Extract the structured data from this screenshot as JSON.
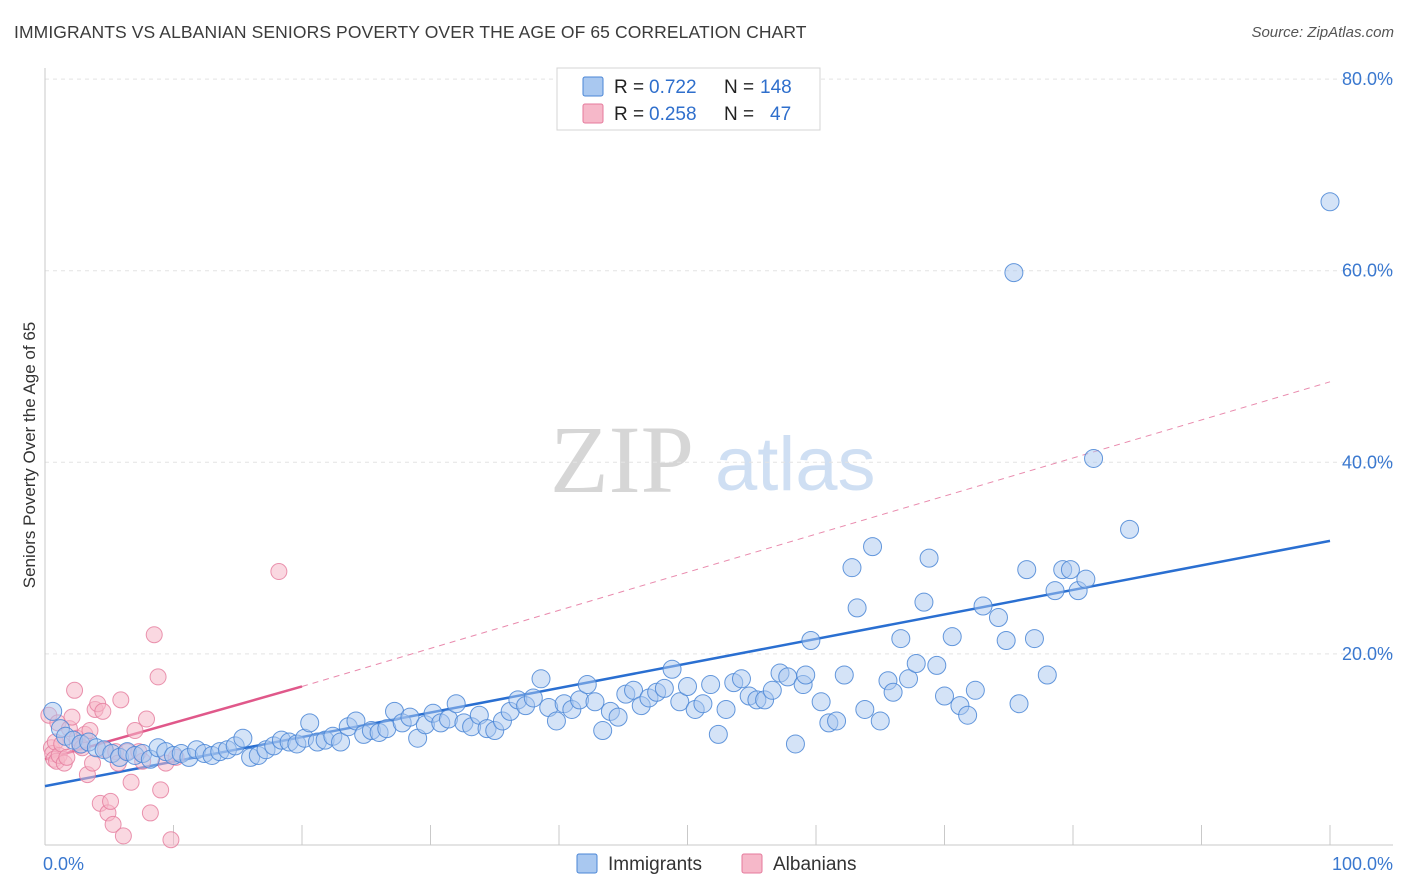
{
  "title": "IMMIGRANTS VS ALBANIAN SENIORS POVERTY OVER THE AGE OF 65 CORRELATION CHART",
  "source": "Source: ZipAtlas.com",
  "watermark": {
    "zip": "ZIP",
    "atlas": "atlas"
  },
  "colors": {
    "immigrants_fill": "#a9c8f0",
    "immigrants_stroke": "#4a86d6",
    "immigrants_line": "#2a6fd1",
    "albanians_fill": "#f6b8c9",
    "albanians_stroke": "#e57a9c",
    "albanians_line": "#e0588a",
    "grid": "#e3e3e3",
    "tick_label": "#3a78cf"
  },
  "legend": {
    "rows": [
      {
        "r_label": "R = ",
        "r_value": "0.722",
        "n_label": "N = ",
        "n_value": "148"
      },
      {
        "r_label": "R = ",
        "r_value": "0.258",
        "n_label": "N = ",
        "n_value": "47"
      }
    ]
  },
  "chart_data": {
    "type": "scatter",
    "title": "IMMIGRANTS VS ALBANIAN SENIORS POVERTY OVER THE AGE OF 65 CORRELATION CHART",
    "xlabel": "",
    "ylabel": "Seniors Poverty Over the Age of 65",
    "xlim": [
      0,
      100
    ],
    "ylim": [
      0,
      80
    ],
    "x_tick_labels": [
      "0.0%",
      "100.0%"
    ],
    "y_ticks": [
      20,
      40,
      60,
      80
    ],
    "y_tick_labels": [
      "20.0%",
      "40.0%",
      "60.0%",
      "80.0%"
    ],
    "grid": true,
    "legend_placement": "top-center",
    "series": [
      {
        "name": "Immigrants",
        "R": 0.722,
        "N": 148,
        "trend": {
          "x": [
            0,
            100
          ],
          "y": [
            6.2,
            31.8
          ]
        },
        "points": [
          [
            0.6,
            14.0
          ],
          [
            1.2,
            12.2
          ],
          [
            1.6,
            11.4
          ],
          [
            2.2,
            11.0
          ],
          [
            2.8,
            10.6
          ],
          [
            3.4,
            10.8
          ],
          [
            4.0,
            10.2
          ],
          [
            4.6,
            10.0
          ],
          [
            5.2,
            9.6
          ],
          [
            5.8,
            9.2
          ],
          [
            6.4,
            9.8
          ],
          [
            7.0,
            9.4
          ],
          [
            7.6,
            9.6
          ],
          [
            8.2,
            9.0
          ],
          [
            8.8,
            10.2
          ],
          [
            9.4,
            9.8
          ],
          [
            10.0,
            9.4
          ],
          [
            10.6,
            9.6
          ],
          [
            11.2,
            9.2
          ],
          [
            11.8,
            10.0
          ],
          [
            12.4,
            9.6
          ],
          [
            13.0,
            9.4
          ],
          [
            13.6,
            9.8
          ],
          [
            14.2,
            10.0
          ],
          [
            14.8,
            10.4
          ],
          [
            15.4,
            11.2
          ],
          [
            16.0,
            9.2
          ],
          [
            16.6,
            9.4
          ],
          [
            17.2,
            10.0
          ],
          [
            17.8,
            10.4
          ],
          [
            18.4,
            11.0
          ],
          [
            19.0,
            10.8
          ],
          [
            19.6,
            10.6
          ],
          [
            20.2,
            11.2
          ],
          [
            20.6,
            12.8
          ],
          [
            21.2,
            10.8
          ],
          [
            21.8,
            11.0
          ],
          [
            22.4,
            11.4
          ],
          [
            23.0,
            10.8
          ],
          [
            23.6,
            12.4
          ],
          [
            24.2,
            13.0
          ],
          [
            24.8,
            11.6
          ],
          [
            25.4,
            12.0
          ],
          [
            26.0,
            11.8
          ],
          [
            26.6,
            12.2
          ],
          [
            27.2,
            14.0
          ],
          [
            27.8,
            12.8
          ],
          [
            28.4,
            13.4
          ],
          [
            29.0,
            11.2
          ],
          [
            29.6,
            12.6
          ],
          [
            30.2,
            13.8
          ],
          [
            30.8,
            12.8
          ],
          [
            31.4,
            13.2
          ],
          [
            32.0,
            14.8
          ],
          [
            32.6,
            12.8
          ],
          [
            33.2,
            12.4
          ],
          [
            33.8,
            13.6
          ],
          [
            34.4,
            12.2
          ],
          [
            35.0,
            12.0
          ],
          [
            35.6,
            13.0
          ],
          [
            36.2,
            14.0
          ],
          [
            36.8,
            15.2
          ],
          [
            37.4,
            14.6
          ],
          [
            38.0,
            15.4
          ],
          [
            38.6,
            17.4
          ],
          [
            39.2,
            14.4
          ],
          [
            39.8,
            13.0
          ],
          [
            40.4,
            14.8
          ],
          [
            41.0,
            14.2
          ],
          [
            41.6,
            15.2
          ],
          [
            42.2,
            16.8
          ],
          [
            42.8,
            15.0
          ],
          [
            43.4,
            12.0
          ],
          [
            44.0,
            14.0
          ],
          [
            44.6,
            13.4
          ],
          [
            45.2,
            15.8
          ],
          [
            45.8,
            16.2
          ],
          [
            46.4,
            14.6
          ],
          [
            47.0,
            15.4
          ],
          [
            47.6,
            16.0
          ],
          [
            48.2,
            16.4
          ],
          [
            48.8,
            18.4
          ],
          [
            49.4,
            15.0
          ],
          [
            50.0,
            16.6
          ],
          [
            50.6,
            14.2
          ],
          [
            51.2,
            14.8
          ],
          [
            51.8,
            16.8
          ],
          [
            52.4,
            11.6
          ],
          [
            53.0,
            14.2
          ],
          [
            53.6,
            17.0
          ],
          [
            54.2,
            17.4
          ],
          [
            54.8,
            15.6
          ],
          [
            55.4,
            15.2
          ],
          [
            56.0,
            15.2
          ],
          [
            56.6,
            16.2
          ],
          [
            57.2,
            18.0
          ],
          [
            57.8,
            17.6
          ],
          [
            58.4,
            10.6
          ],
          [
            59.0,
            16.8
          ],
          [
            59.6,
            21.4
          ],
          [
            59.2,
            17.8
          ],
          [
            60.4,
            15.0
          ],
          [
            61.0,
            12.8
          ],
          [
            61.6,
            13.0
          ],
          [
            62.2,
            17.8
          ],
          [
            62.8,
            29.0
          ],
          [
            63.2,
            24.8
          ],
          [
            63.8,
            14.2
          ],
          [
            64.4,
            31.2
          ],
          [
            65.0,
            13.0
          ],
          [
            65.6,
            17.2
          ],
          [
            66.0,
            16.0
          ],
          [
            66.6,
            21.6
          ],
          [
            67.2,
            17.4
          ],
          [
            67.8,
            19.0
          ],
          [
            68.4,
            25.4
          ],
          [
            68.8,
            30.0
          ],
          [
            69.4,
            18.8
          ],
          [
            70.0,
            15.6
          ],
          [
            70.6,
            21.8
          ],
          [
            71.2,
            14.6
          ],
          [
            71.8,
            13.6
          ],
          [
            72.4,
            16.2
          ],
          [
            73.0,
            25.0
          ],
          [
            74.2,
            23.8
          ],
          [
            74.8,
            21.4
          ],
          [
            75.4,
            59.8
          ],
          [
            75.8,
            14.8
          ],
          [
            76.4,
            28.8
          ],
          [
            77.0,
            21.6
          ],
          [
            78.0,
            17.8
          ],
          [
            78.6,
            26.6
          ],
          [
            79.2,
            28.8
          ],
          [
            79.8,
            28.8
          ],
          [
            80.4,
            26.6
          ],
          [
            81.0,
            27.8
          ],
          [
            81.6,
            40.4
          ],
          [
            84.4,
            33.0
          ],
          [
            100.0,
            67.2
          ]
        ]
      },
      {
        "name": "Albanians",
        "R": 0.258,
        "N": 47,
        "trend": {
          "x": [
            0,
            20
          ],
          "y": [
            9.0,
            16.6
          ]
        },
        "trend_extension": {
          "x": [
            20,
            100
          ],
          "y": [
            16.6,
            48.4
          ]
        },
        "points": [
          [
            0.3,
            13.6
          ],
          [
            0.5,
            10.2
          ],
          [
            0.6,
            9.6
          ],
          [
            0.7,
            9.0
          ],
          [
            0.8,
            10.8
          ],
          [
            0.9,
            8.8
          ],
          [
            1.0,
            12.8
          ],
          [
            1.1,
            9.4
          ],
          [
            1.3,
            10.6
          ],
          [
            1.5,
            8.6
          ],
          [
            1.7,
            9.2
          ],
          [
            1.9,
            12.2
          ],
          [
            2.1,
            13.4
          ],
          [
            2.3,
            16.2
          ],
          [
            2.5,
            11.2
          ],
          [
            2.7,
            10.4
          ],
          [
            2.9,
            10.2
          ],
          [
            3.1,
            11.6
          ],
          [
            3.3,
            7.4
          ],
          [
            3.5,
            12.0
          ],
          [
            3.7,
            8.6
          ],
          [
            3.9,
            14.2
          ],
          [
            4.1,
            14.8
          ],
          [
            4.3,
            4.4
          ],
          [
            4.5,
            14.0
          ],
          [
            4.7,
            10.0
          ],
          [
            4.9,
            3.4
          ],
          [
            5.1,
            4.6
          ],
          [
            5.3,
            2.2
          ],
          [
            5.5,
            9.8
          ],
          [
            5.7,
            8.6
          ],
          [
            5.9,
            15.2
          ],
          [
            6.1,
            1.0
          ],
          [
            6.4,
            9.8
          ],
          [
            6.7,
            6.6
          ],
          [
            7.0,
            12.0
          ],
          [
            7.3,
            9.8
          ],
          [
            7.6,
            8.8
          ],
          [
            7.9,
            13.2
          ],
          [
            8.2,
            3.4
          ],
          [
            8.5,
            22.0
          ],
          [
            8.8,
            17.6
          ],
          [
            9.0,
            5.8
          ],
          [
            9.4,
            8.6
          ],
          [
            9.8,
            0.6
          ],
          [
            10.2,
            9.2
          ],
          [
            18.2,
            28.6
          ]
        ]
      }
    ]
  },
  "bottom_legend": {
    "immigrants": "Immigrants",
    "albanians": "Albanians"
  }
}
